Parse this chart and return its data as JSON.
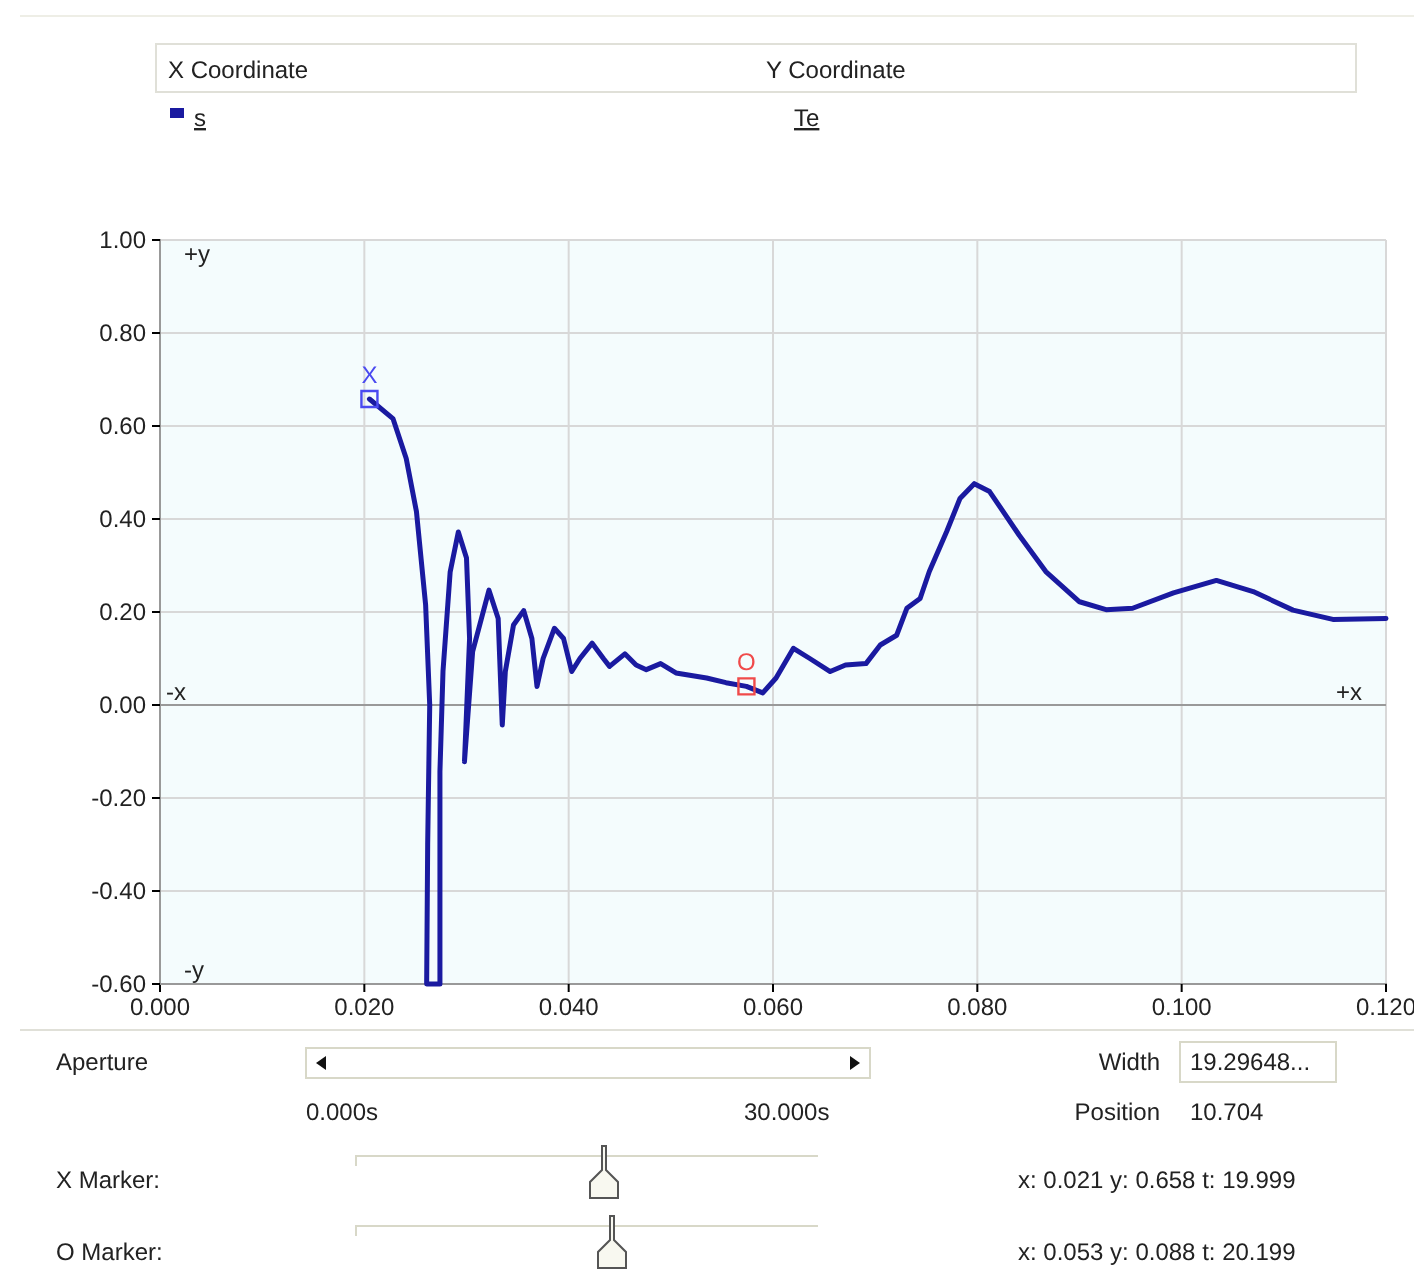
{
  "chart_data": {
    "type": "line",
    "grid": true,
    "legend": "top left",
    "line_style": "solid",
    "xlim": [
      0,
      0.12
    ],
    "ylim": [
      -0.6,
      1
    ],
    "xticks": [
      {
        "value": 0,
        "label": "0.000"
      },
      {
        "value": 0.02,
        "label": "0.020"
      },
      {
        "value": 0.04,
        "label": "0.040"
      },
      {
        "value": 0.06,
        "label": "0.060"
      },
      {
        "value": 0.08,
        "label": "0.080"
      },
      {
        "value": 0.1,
        "label": "0.100"
      },
      {
        "value": 0.12,
        "label": "0.120"
      }
    ],
    "yticks": [
      {
        "value": -0.6,
        "label": "-0.60"
      },
      {
        "value": -0.4,
        "label": "-0.40"
      },
      {
        "value": -0.2,
        "label": "-0.20"
      },
      {
        "value": 0,
        "label": "0.00"
      },
      {
        "value": 0.2,
        "label": "0.20"
      },
      {
        "value": 0.4,
        "label": "0.40"
      },
      {
        "value": 0.6,
        "label": "0.60"
      },
      {
        "value": 0.8,
        "label": "0.80"
      },
      {
        "value": 1,
        "label": "1.00"
      }
    ],
    "series": [
      {
        "name": "s",
        "color": "#1a1aa0",
        "x": [
          0.0205,
          0.0228,
          0.0241,
          0.0251,
          0.026,
          0.0264,
          0.0262,
          0.0261,
          0.0274,
          0.0274,
          0.0277,
          0.0284,
          0.0292,
          0.03,
          0.0303,
          0.0298,
          0.0306,
          0.0322,
          0.0331,
          0.0335,
          0.0338,
          0.0346,
          0.0356,
          0.0364,
          0.0369,
          0.0375,
          0.0386,
          0.0395,
          0.0403,
          0.0411,
          0.0423,
          0.0434,
          0.044,
          0.0455,
          0.0466,
          0.0476,
          0.049,
          0.0505,
          0.0535,
          0.0554,
          0.0574,
          0.059,
          0.0603,
          0.062,
          0.0636,
          0.0656,
          0.0671,
          0.0691,
          0.0705,
          0.0721,
          0.0731,
          0.0744,
          0.0753,
          0.077,
          0.0783,
          0.0797,
          0.0812,
          0.0841,
          0.0867,
          0.09,
          0.0926,
          0.0952,
          0.0992,
          0.1034,
          0.107,
          0.1109,
          0.1148,
          0.12
        ],
        "values": [
          0.658,
          0.616,
          0.53,
          0.416,
          0.215,
          0,
          -0.3,
          -0.6,
          -0.6,
          -0.143,
          0.073,
          0.286,
          0.372,
          0.316,
          0.143,
          -0.122,
          0.115,
          0.247,
          0.186,
          -0.043,
          0.072,
          0.172,
          0.203,
          0.143,
          0.04,
          0.1,
          0.165,
          0.143,
          0.072,
          0.1,
          0.133,
          0.1,
          0.083,
          0.11,
          0.086,
          0.076,
          0.089,
          0.069,
          0.058,
          0.048,
          0.04,
          0.026,
          0.058,
          0.122,
          0.1,
          0.072,
          0.086,
          0.089,
          0.129,
          0.15,
          0.208,
          0.229,
          0.287,
          0.373,
          0.444,
          0.476,
          0.459,
          0.365,
          0.287,
          0.222,
          0.205,
          0.208,
          0.241,
          0.268,
          0.244,
          0.204,
          0.184,
          0.186
        ]
      },
      {
        "type": "scatter",
        "color": "#4a4af0",
        "marker": "square",
        "x": [
          0.0205
        ],
        "values": [
          0.658
        ]
      },
      {
        "type": "scatter",
        "color": "#f04a4a",
        "marker": "square",
        "x": [
          0.0574
        ],
        "values": [
          0.04
        ]
      }
    ],
    "annotations": [
      "+y",
      "-y",
      "-x",
      "+x",
      "Aperture",
      "0.000s",
      "30.000s",
      "Width",
      "19.29648...",
      "Position",
      "10.704",
      "X Marker:",
      "x: 0.021  y: 0.658  t: 19.999",
      "O Marker:",
      "x: 0.053  y: 0.088  t: 20.199",
      "X Coordinate",
      "Y Coordinate",
      "Te",
      {
        "text": "X",
        "x": 0.0205,
        "y": 0.658
      },
      {
        "text": "O",
        "x": 0.0574,
        "y": 0.04
      }
    ]
  }
}
